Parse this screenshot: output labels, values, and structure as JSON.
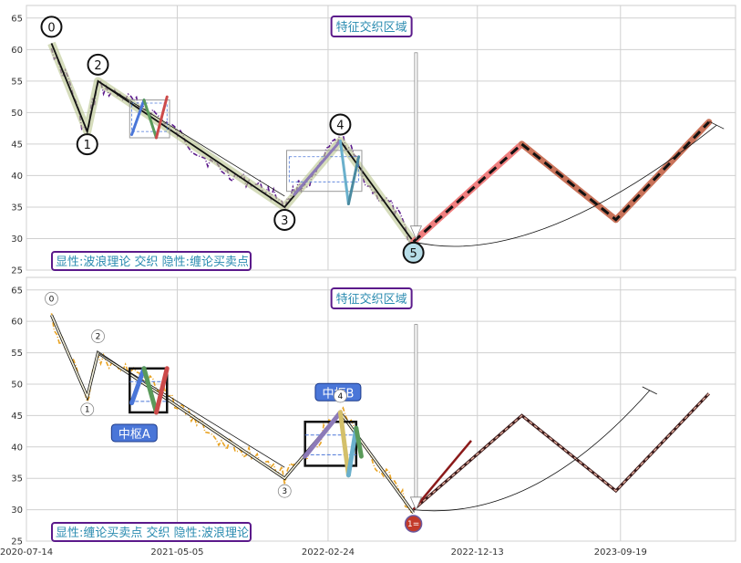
{
  "chart_data": [
    {
      "type": "line",
      "panel": "top",
      "ylim": [
        25,
        67
      ],
      "yticks": [
        25,
        30,
        35,
        40,
        45,
        50,
        55,
        60,
        65
      ],
      "wave_points": [
        {
          "label": "0",
          "x": "2020-09-01",
          "y": 61
        },
        {
          "label": "1",
          "x": "2020-11-10",
          "y": 47
        },
        {
          "label": "2",
          "x": "2020-12-01",
          "y": 55
        },
        {
          "label": "3",
          "x": "2021-12-01",
          "y": 35
        },
        {
          "label": "4",
          "x": "2022-03-20",
          "y": 45.5
        },
        {
          "label": "5",
          "x": "2022-08-10",
          "y": 29.5
        }
      ],
      "future_path": [
        {
          "x": "2022-08-10",
          "y": 29.5
        },
        {
          "x": "2023-03-10",
          "y": 45
        },
        {
          "x": "2023-09-10",
          "y": 33
        },
        {
          "x": "2024-03-10",
          "y": 48.5
        }
      ],
      "feature_label": "特征交织区域",
      "bottom_label": "显性:波浪理论 交织 隐性:缠论买卖点"
    },
    {
      "type": "line",
      "panel": "bottom",
      "ylim": [
        25,
        67
      ],
      "yticks": [
        25,
        30,
        35,
        40,
        45,
        50,
        55,
        60,
        65
      ],
      "wave_points": [
        {
          "label": "0",
          "x": "2020-09-01",
          "y": 61
        },
        {
          "label": "1",
          "x": "2020-11-10",
          "y": 48
        },
        {
          "label": "2",
          "x": "2020-12-01",
          "y": 55
        },
        {
          "label": "3",
          "x": "2021-12-01",
          "y": 35
        },
        {
          "label": "4",
          "x": "2022-03-20",
          "y": 45.5
        },
        {
          "label": "1=",
          "x": "2022-08-10",
          "y": 29.5
        }
      ],
      "zhongshu": [
        {
          "name": "中枢A",
          "x0": "2021-02-01",
          "x1": "2021-04-15",
          "y0": 45.5,
          "y1": 52.5
        },
        {
          "name": "中枢B",
          "x0": "2022-01-10",
          "x1": "2022-04-20",
          "y0": 37,
          "y1": 44
        }
      ],
      "future_path": [
        {
          "x": "2022-08-10",
          "y": 30
        },
        {
          "x": "2023-03-10",
          "y": 45
        },
        {
          "x": "2023-09-10",
          "y": 33
        },
        {
          "x": "2024-03-10",
          "y": 48.5
        }
      ],
      "feature_label": "特征交织区域",
      "bottom_label": "显性:缠论买卖点 交织 隐性:波浪理论"
    }
  ],
  "xaxis": {
    "xlim": [
      "2020-07-14",
      "2024-05-01"
    ],
    "ticks": [
      "2020-07-14",
      "2021-05-05",
      "2022-02-24",
      "2022-12-13",
      "2023-09-19"
    ]
  },
  "colors": {
    "top_price": "#5b1a8b",
    "bottom_price": "#e8a323",
    "label_text": "#2a8bb0",
    "label_border": "#5b1a8b",
    "zhongshu_fill": "#4a76d8",
    "future_red": "#f07f7f",
    "future_brown": "#c9735a"
  }
}
